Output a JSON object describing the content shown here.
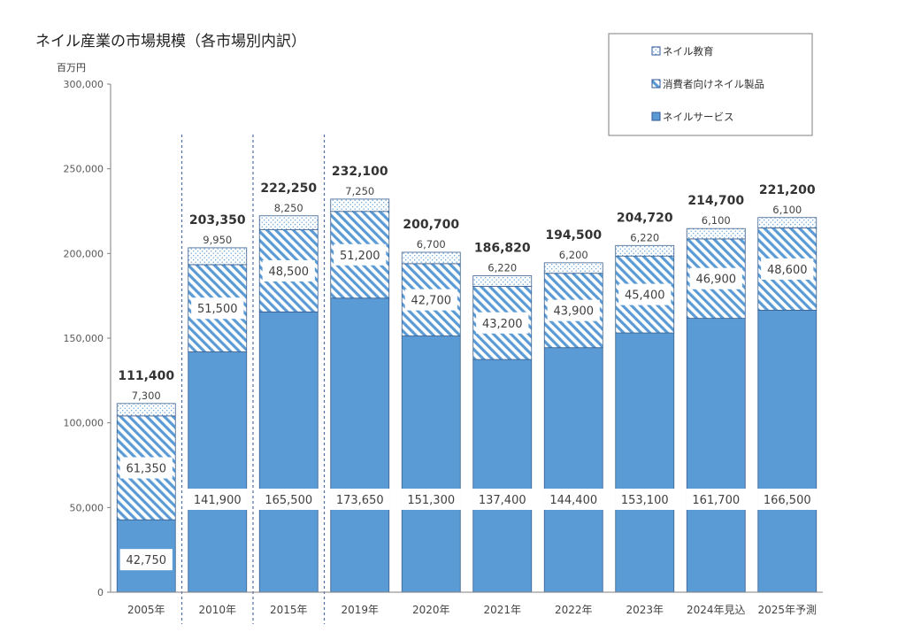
{
  "chart_data": {
    "type": "bar",
    "stacked": true,
    "title": "ネイル産業の市場規模（各市場別内訳）",
    "unit": "百万円",
    "ylim": [
      0,
      300000
    ],
    "yticks": [
      0,
      50000,
      100000,
      150000,
      200000,
      250000,
      300000
    ],
    "ytick_labels": [
      "0",
      "50,000",
      "100,000",
      "150,000",
      "200,000",
      "250,000",
      "300,000"
    ],
    "categories": [
      "2005年",
      "2010年",
      "2015年",
      "2019年",
      "2020年",
      "2021年",
      "2022年",
      "2023年",
      "2024年見込",
      "2025年予測"
    ],
    "series": [
      {
        "name": "ネイルサービス",
        "color": "#5b9bd5",
        "values": [
          42750,
          141900,
          165500,
          173650,
          151300,
          137400,
          144400,
          153100,
          161700,
          166500
        ],
        "labels": [
          "42,750",
          "141,900",
          "165,500",
          "173,650",
          "151,300",
          "137,400",
          "144,400",
          "153,100",
          "161,700",
          "166,500"
        ]
      },
      {
        "name": "消費者向けネイル製品",
        "color": "#5b9bd5",
        "pattern": "diagonal-hatch",
        "values": [
          61350,
          51500,
          48500,
          51200,
          42700,
          43200,
          43900,
          45400,
          46900,
          48600
        ],
        "labels": [
          "61,350",
          "51,500",
          "48,500",
          "51,200",
          "42,700",
          "43,200",
          "43,900",
          "45,400",
          "46,900",
          "48,600"
        ]
      },
      {
        "name": "ネイル教育",
        "color": "#5b9bd5",
        "pattern": "dots",
        "values": [
          7300,
          9950,
          8250,
          7250,
          6700,
          6220,
          6200,
          6220,
          6100,
          6100
        ],
        "labels": [
          "7,300",
          "9,950",
          "8,250",
          "7,250",
          "6,700",
          "6,220",
          "6,200",
          "6,220",
          "6,100",
          "6,100"
        ]
      }
    ],
    "totals": [
      111400,
      203350,
      222250,
      232100,
      200700,
      186820,
      194500,
      204720,
      214700,
      221200
    ],
    "total_labels": [
      "111,400",
      "203,350",
      "222,250",
      "232,100",
      "200,700",
      "186,820",
      "194,500",
      "204,720",
      "214,700",
      "221,200"
    ],
    "legend_order": [
      "ネイル教育",
      "消費者向けネイル製品",
      "ネイルサービス"
    ],
    "legend_position": "top-right",
    "separators_after_categories": [
      "2005年",
      "2010年",
      "2015年"
    ],
    "grid": false
  }
}
